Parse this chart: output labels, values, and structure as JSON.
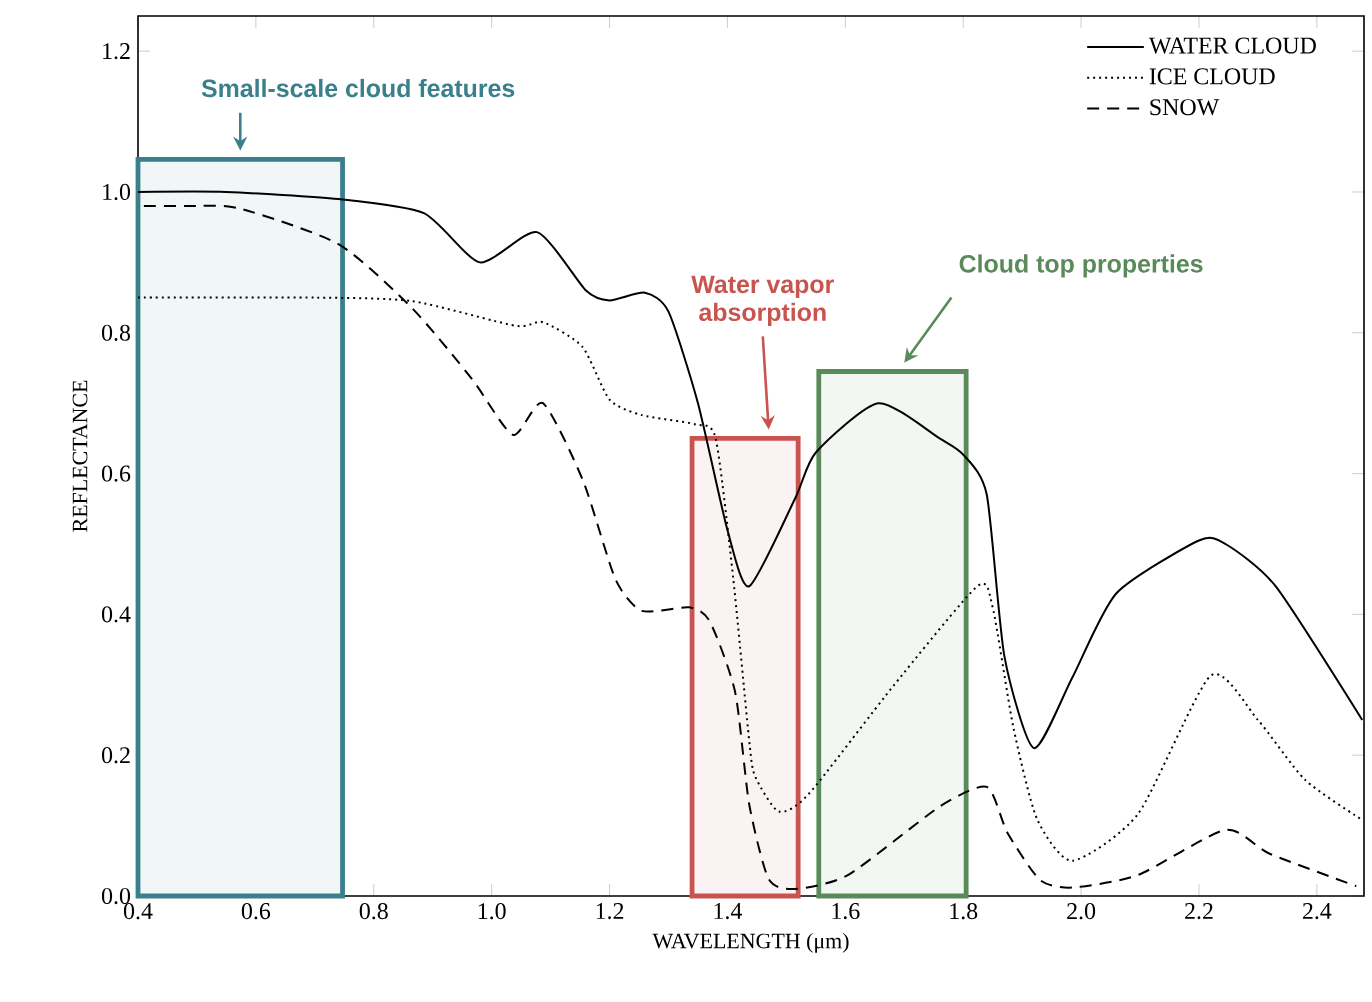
{
  "chart_data": {
    "type": "line",
    "xlabel": "WAVELENGTH (μm)",
    "ylabel": "REFLECTANCE",
    "xlim": [
      0.4,
      2.48
    ],
    "ylim": [
      0,
      1.25
    ],
    "xticks": [
      {
        "value": 0.4,
        "label": "0.4"
      },
      {
        "value": 0.6,
        "label": "0.6"
      },
      {
        "value": 0.8,
        "label": "0.8"
      },
      {
        "value": 1.0,
        "label": "1.0"
      },
      {
        "value": 1.2,
        "label": "1.2"
      },
      {
        "value": 1.4,
        "label": "1.4"
      },
      {
        "value": 1.6,
        "label": "1.6"
      },
      {
        "value": 1.8,
        "label": "1.8"
      },
      {
        "value": 2.0,
        "label": "2.0"
      },
      {
        "value": 2.2,
        "label": "2.2"
      },
      {
        "value": 2.4,
        "label": "2.4"
      }
    ],
    "yticks": [
      {
        "value": 0,
        "label": "0.0"
      },
      {
        "value": 0.2,
        "label": "0.2"
      },
      {
        "value": 0.4,
        "label": "0.4"
      },
      {
        "value": 0.6,
        "label": "0.6"
      },
      {
        "value": 0.8,
        "label": "0.8"
      },
      {
        "value": 1.0,
        "label": "1.0"
      },
      {
        "value": 1.2,
        "label": "1.2"
      }
    ],
    "legend": "top right",
    "grid": false,
    "marker": "none",
    "series": [
      {
        "name": "WATER CLOUD",
        "color": "#000000",
        "line_style": "solid",
        "x": [
          0.4,
          0.55,
          0.74,
          0.885,
          0.98,
          1.077,
          1.16,
          1.2,
          1.26,
          1.3,
          1.35,
          1.4,
          1.437,
          1.515,
          1.55,
          1.656,
          1.76,
          1.8,
          1.84,
          1.87,
          1.92,
          1.985,
          2.06,
          2.2,
          2.245,
          2.33,
          2.477
        ],
        "values": [
          1.0,
          1.0,
          0.99,
          0.97,
          0.9,
          0.943,
          0.86,
          0.846,
          0.857,
          0.83,
          0.7,
          0.52,
          0.44,
          0.565,
          0.63,
          0.7,
          0.65,
          0.627,
          0.57,
          0.34,
          0.21,
          0.31,
          0.43,
          0.505,
          0.5,
          0.44,
          0.25
        ]
      },
      {
        "name": "ICE CLOUD",
        "color": "#000000",
        "line_style": "dotted",
        "x": [
          0.4,
          0.7,
          0.865,
          1.04,
          1.087,
          1.154,
          1.2,
          1.255,
          1.345,
          1.38,
          1.41,
          1.437,
          1.447,
          1.487,
          1.538,
          1.683,
          1.824,
          1.85,
          1.885,
          1.925,
          1.985,
          2.097,
          2.22,
          2.3,
          2.38,
          2.477
        ],
        "values": [
          0.85,
          0.85,
          0.845,
          0.81,
          0.815,
          0.78,
          0.705,
          0.683,
          0.67,
          0.65,
          0.45,
          0.22,
          0.17,
          0.12,
          0.145,
          0.3,
          0.44,
          0.41,
          0.24,
          0.11,
          0.05,
          0.117,
          0.313,
          0.25,
          0.165,
          0.108
        ]
      },
      {
        "name": "SNOW",
        "color": "#000000",
        "line_style": "dashed",
        "x": [
          0.41,
          0.48,
          0.57,
          0.74,
          0.865,
          0.966,
          1.036,
          1.087,
          1.155,
          1.21,
          1.255,
          1.335,
          1.37,
          1.413,
          1.437,
          1.47,
          1.515,
          1.605,
          1.76,
          1.84,
          1.875,
          1.93,
          1.985,
          2.097,
          2.245,
          2.32,
          2.467
        ],
        "values": [
          0.98,
          0.98,
          0.977,
          0.926,
          0.835,
          0.735,
          0.655,
          0.7,
          0.59,
          0.45,
          0.405,
          0.41,
          0.39,
          0.29,
          0.13,
          0.024,
          0.01,
          0.03,
          0.127,
          0.155,
          0.09,
          0.023,
          0.012,
          0.03,
          0.094,
          0.06,
          0.014
        ]
      }
    ],
    "bands": [
      {
        "axis": "x",
        "from": 0.4,
        "to": 0.747,
        "label": "Small-scale cloud features",
        "color": "#3a7f8c"
      },
      {
        "axis": "x",
        "from": 1.34,
        "to": 1.52,
        "label": "Water vapor absorption",
        "color": "#c9534f"
      },
      {
        "axis": "x",
        "from": 1.555,
        "to": 1.805,
        "label": "Cloud top properties",
        "color": "#5a8a5a"
      }
    ]
  }
}
